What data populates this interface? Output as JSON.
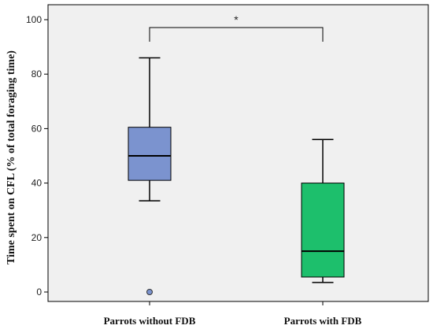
{
  "chart_data": {
    "type": "boxplot",
    "title": "",
    "xlabel": "",
    "ylabel": "Time spent on CFL (% of total foraging time)",
    "ylim": [
      0,
      100
    ],
    "yticks": [
      "0",
      "20",
      "40",
      "60",
      "80",
      "100"
    ],
    "grid": false,
    "categories": [
      "Parrots without FDB",
      "Parrots with FDB"
    ],
    "boxes": [
      {
        "category": "Parrots without FDB",
        "min": 33.5,
        "q1": 41,
        "median": 50,
        "q3": 60.5,
        "max": 86,
        "outliers": [
          0
        ],
        "color": "#7b93cf"
      },
      {
        "category": "Parrots with FDB",
        "min": 3.5,
        "q1": 5.5,
        "median": 15,
        "q3": 40,
        "max": 56,
        "outliers": [],
        "color": "#1dbf6c"
      }
    ],
    "annotations": [
      {
        "type": "significance",
        "label": "*",
        "between": [
          "Parrots without FDB",
          "Parrots with FDB"
        ],
        "y": 96
      }
    ],
    "plot_background": "#f0f0f0"
  }
}
